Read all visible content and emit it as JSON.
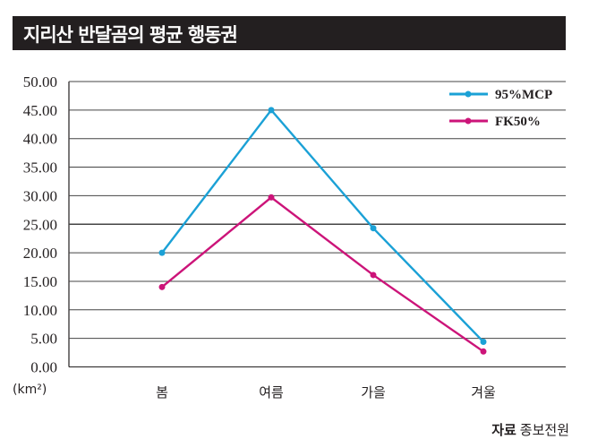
{
  "chart_data": {
    "type": "line",
    "title": "지리산 반달곰의 평균 행동권",
    "ylabel": "(km²)",
    "categories": [
      "봄",
      "여름",
      "가을",
      "겨울"
    ],
    "ylim": [
      0,
      50
    ],
    "yticks": [
      "0.00",
      "5.00",
      "10.00",
      "15.00",
      "20.00",
      "25.00",
      "30.00",
      "35.00",
      "40.00",
      "45.00",
      "50.00"
    ],
    "grid": true,
    "legend_position": "top-right",
    "series": [
      {
        "name": "95%MCP",
        "color": "#1ba1d6",
        "values": [
          20.0,
          45.0,
          24.3,
          4.4
        ]
      },
      {
        "name": "FK50%",
        "color": "#cc1479",
        "values": [
          14.0,
          29.7,
          16.1,
          2.7
        ]
      }
    ]
  },
  "source": {
    "label": "자료",
    "text": "종보전원"
  }
}
